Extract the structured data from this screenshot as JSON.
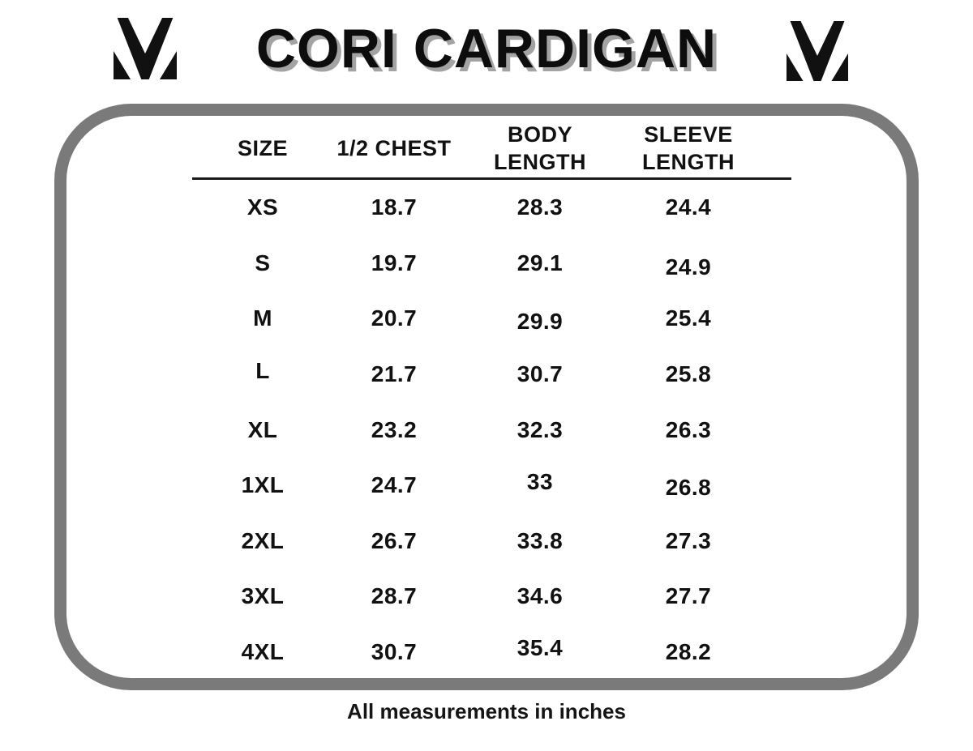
{
  "header": {
    "title": "CORI CARDIGAN",
    "left_logo_icon": "m-brand-logo",
    "right_logo_icon": "m-brand-logo"
  },
  "size_chart": {
    "columns": [
      "SIZE",
      "1/2 CHEST",
      "BODY LENGTH",
      "SLEEVE LENGTH"
    ],
    "rows": [
      [
        "XS",
        "18.7",
        "28.3",
        "24.4"
      ],
      [
        "S",
        "19.7",
        "29.1",
        "24.9"
      ],
      [
        "M",
        "20.7",
        "29.9",
        "25.4"
      ],
      [
        "L",
        "21.7",
        "30.7",
        "25.8"
      ],
      [
        "XL",
        "23.2",
        "32.3",
        "26.3"
      ],
      [
        "1XL",
        "24.7",
        "33",
        "26.8"
      ],
      [
        "2XL",
        "26.7",
        "33.8",
        "27.3"
      ],
      [
        "3XL",
        "28.7",
        "34.6",
        "27.7"
      ],
      [
        "4XL",
        "30.7",
        "35.4",
        "28.2"
      ]
    ]
  },
  "footer": {
    "note": "All measurements in inches"
  },
  "colors": {
    "frame_gray": "#7a7a7a",
    "title_shadow_gray": "#a3a3a3",
    "rule_black": "#1a1a1a",
    "text_black": "#111111",
    "background": "#ffffff"
  }
}
